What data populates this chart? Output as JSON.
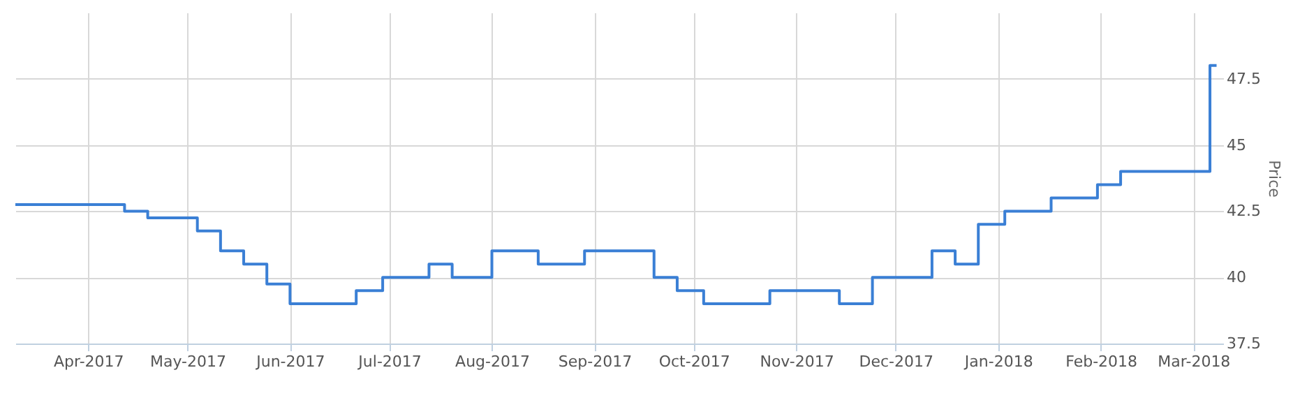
{
  "chart_data": {
    "type": "step",
    "ylabel": "Price",
    "x": [
      "2017-03-10",
      "2017-04-12",
      "2017-04-19",
      "2017-05-04",
      "2017-05-11",
      "2017-05-18",
      "2017-05-25",
      "2017-06-01",
      "2017-06-21",
      "2017-06-29",
      "2017-07-13",
      "2017-07-20",
      "2017-08-01",
      "2017-08-15",
      "2017-08-29",
      "2017-09-19",
      "2017-09-26",
      "2017-10-04",
      "2017-10-24",
      "2017-11-14",
      "2017-11-24",
      "2017-12-12",
      "2017-12-19",
      "2017-12-26",
      "2018-01-03",
      "2018-01-17",
      "2018-01-31",
      "2018-02-07",
      "2018-03-06",
      "2018-03-08"
    ],
    "series": [
      {
        "color": "#3a7fd5",
        "values": [
          42.75,
          42.5,
          42.25,
          41.75,
          41.0,
          40.5,
          39.75,
          39.0,
          39.5,
          40.0,
          40.5,
          40.0,
          41.0,
          40.5,
          41.0,
          40.0,
          39.5,
          39.0,
          39.5,
          39.0,
          40.0,
          41.0,
          40.5,
          42.0,
          42.5,
          43.0,
          43.5,
          44.0,
          48.0,
          48.0
        ]
      }
    ],
    "xlim": [
      "2017-03-10",
      "2018-03-10"
    ],
    "xticks": [
      {
        "value": "2017-04-01",
        "label": "Apr-2017"
      },
      {
        "value": "2017-05-01",
        "label": "May-2017"
      },
      {
        "value": "2017-06-01",
        "label": "Jun-2017"
      },
      {
        "value": "2017-07-01",
        "label": "Jul-2017"
      },
      {
        "value": "2017-08-01",
        "label": "Aug-2017"
      },
      {
        "value": "2017-09-01",
        "label": "Sep-2017"
      },
      {
        "value": "2017-10-01",
        "label": "Oct-2017"
      },
      {
        "value": "2017-11-01",
        "label": "Nov-2017"
      },
      {
        "value": "2017-12-01",
        "label": "Dec-2017"
      },
      {
        "value": "2018-01-01",
        "label": "Jan-2018"
      },
      {
        "value": "2018-02-01",
        "label": "Feb-2018"
      },
      {
        "value": "2018-03-01",
        "label": "Mar-2018"
      }
    ],
    "ylim": [
      37.5,
      50
    ],
    "yticks": [
      37.5,
      40,
      42.5,
      45,
      47.5
    ],
    "grid": true,
    "line_style": "solid",
    "marker": "none"
  }
}
